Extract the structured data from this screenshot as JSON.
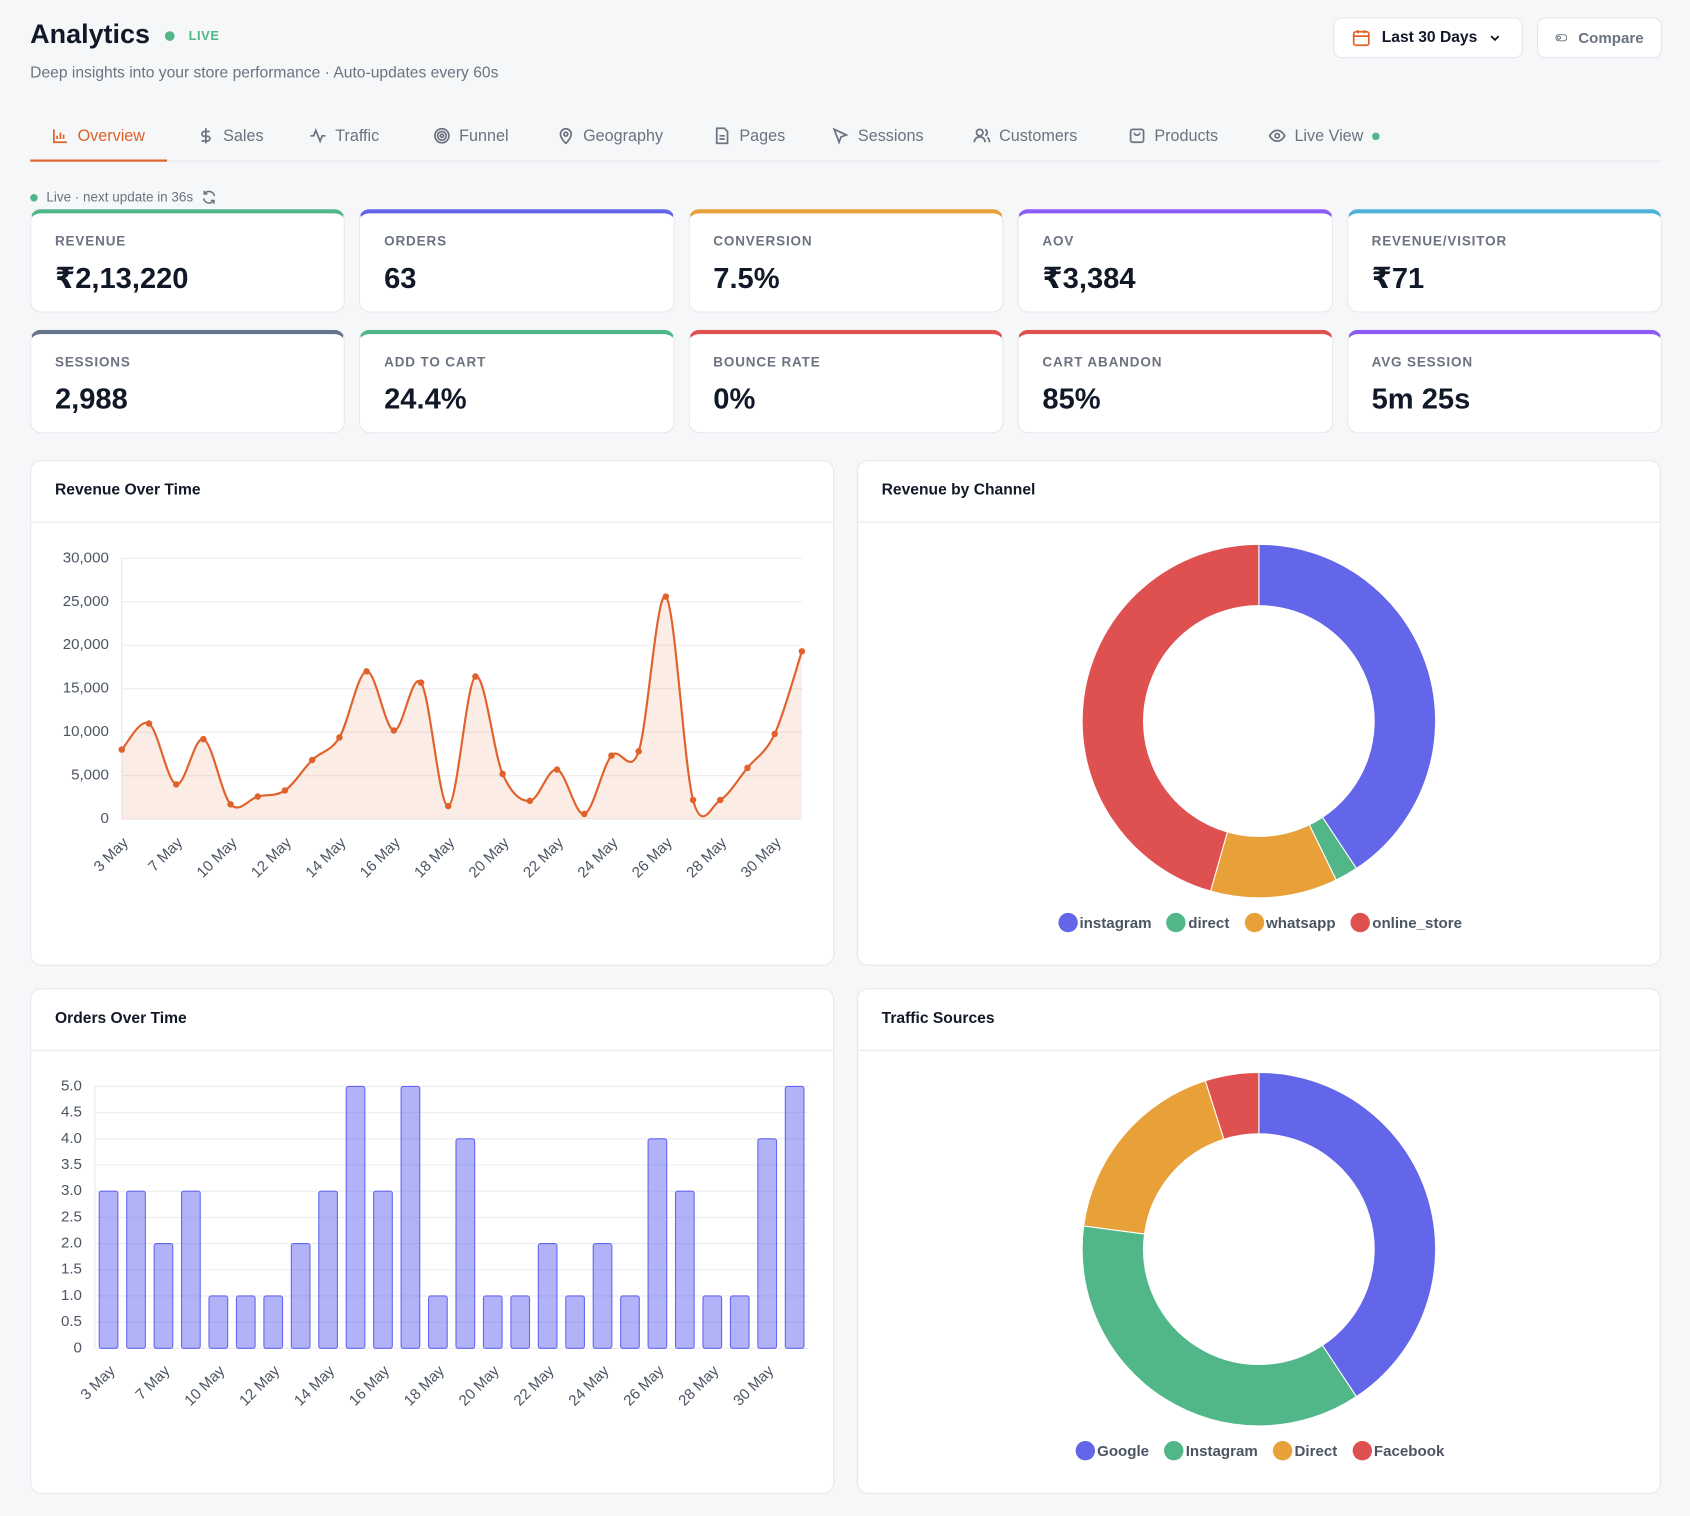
{
  "header": {
    "title": "Analytics",
    "live": "LIVE",
    "subtitle": "Deep insights into your store performance · Auto-updates every 60s",
    "date_range": "Last 30 Days",
    "compare": "Compare"
  },
  "tabs": [
    "Overview",
    "Sales",
    "Traffic",
    "Funnel",
    "Geography",
    "Pages",
    "Sessions",
    "Customers",
    "Products",
    "Live View"
  ],
  "status": "Live · next update in 36s",
  "kpis": [
    {
      "label": "REVENUE",
      "value": "₹2,13,220"
    },
    {
      "label": "ORDERS",
      "value": "63"
    },
    {
      "label": "CONVERSION",
      "value": "7.5%"
    },
    {
      "label": "AOV",
      "value": "₹3,384"
    },
    {
      "label": "REVENUE/VISITOR",
      "value": "₹71"
    },
    {
      "label": "SESSIONS",
      "value": "2,988"
    },
    {
      "label": "ADD TO CART",
      "value": "24.4%"
    },
    {
      "label": "BOUNCE RATE",
      "value": "0%"
    },
    {
      "label": "CART ABANDON",
      "value": "85%"
    },
    {
      "label": "AVG SESSION",
      "value": "5m 25s"
    }
  ],
  "chart_data": [
    {
      "type": "line",
      "title": "Revenue Over Time",
      "color": "#e0622a",
      "grid": true,
      "categories": [
        "3 May",
        null,
        "7 May",
        null,
        "10 May",
        null,
        "12 May",
        null,
        "14 May",
        null,
        "16 May",
        null,
        "18 May",
        null,
        "20 May",
        null,
        "22 May",
        null,
        "24 May",
        null,
        "26 May",
        null,
        "28 May",
        null,
        "30 May",
        null
      ],
      "values": [
        8000,
        11000,
        4000,
        9200,
        1700,
        2600,
        3300,
        6800,
        9400,
        17000,
        10200,
        15700,
        1500,
        16400,
        5200,
        2100,
        5700,
        600,
        7300,
        7800,
        25600,
        2200,
        2200,
        5900,
        9800,
        19300
      ],
      "ylim": [
        0,
        30000
      ],
      "yticks": [
        0,
        {
          "value": 5000,
          "label": "5,000"
        },
        {
          "value": 10000,
          "label": "10,000"
        },
        {
          "value": 15000,
          "label": "15,000"
        },
        {
          "value": 20000,
          "label": "20,000"
        },
        {
          "value": 25000,
          "label": "25,000"
        },
        {
          "value": 30000,
          "label": "30,000"
        }
      ]
    },
    {
      "type": "donut",
      "title": "Revenue by Channel",
      "categories": [
        "instagram",
        "direct",
        "whatsapp",
        "online_store"
      ],
      "values": [
        40.7,
        2.1,
        11.6,
        45.6
      ],
      "colors": [
        "#6366e8",
        "#52b788",
        "#e8a038",
        "#df5150"
      ]
    },
    {
      "type": "bar",
      "title": "Orders Over Time",
      "color": "#6366f1",
      "grid": true,
      "categories": [
        "3 May",
        null,
        "7 May",
        null,
        "10 May",
        null,
        "12 May",
        null,
        "14 May",
        null,
        "16 May",
        null,
        "18 May",
        null,
        "20 May",
        null,
        "22 May",
        null,
        "24 May",
        null,
        "26 May",
        null,
        "28 May",
        null,
        "30 May",
        null
      ],
      "values": [
        3,
        3,
        2,
        3,
        1,
        1,
        1,
        2,
        3,
        5,
        3,
        5,
        1,
        4,
        1,
        1,
        2,
        1,
        2,
        1,
        4,
        3,
        1,
        1,
        4,
        5
      ],
      "ylim": [
        0,
        5
      ],
      "yticks": [
        0,
        0.5,
        {
          "value": 1,
          "label": "1.0"
        },
        1.5,
        {
          "value": 2,
          "label": "2.0"
        },
        2.5,
        {
          "value": 3,
          "label": "3.0"
        },
        3.5,
        {
          "value": 4,
          "label": "4.0"
        },
        4.5,
        {
          "value": 5,
          "label": "5.0"
        }
      ]
    },
    {
      "type": "donut",
      "title": "Traffic Sources",
      "categories": [
        "Google",
        "Instagram",
        "Direct",
        "Facebook"
      ],
      "values": [
        40.7,
        36.4,
        18,
        4.9
      ],
      "colors": [
        "#6366e8",
        "#52b788",
        "#e8a038",
        "#df5150"
      ]
    }
  ]
}
